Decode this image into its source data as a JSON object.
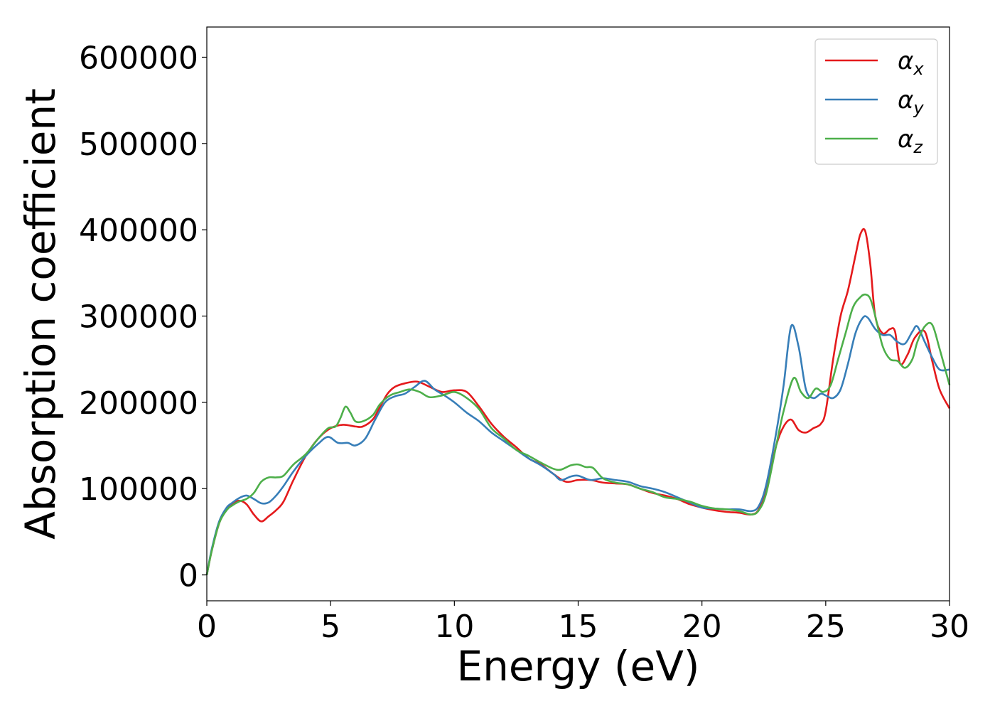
{
  "chart_data": {
    "type": "line",
    "title": "",
    "xlabel": "Energy (eV)",
    "ylabel": "Absorption coefficient",
    "xlim": [
      0,
      30
    ],
    "ylim": [
      -30000,
      635000
    ],
    "xticks": [
      0,
      5,
      10,
      15,
      20,
      25,
      30
    ],
    "xtick_labels": [
      "0",
      "5",
      "10",
      "15",
      "20",
      "25",
      "30"
    ],
    "yticks": [
      0,
      100000,
      200000,
      300000,
      400000,
      500000,
      600000
    ],
    "ytick_labels": [
      "0",
      "100000",
      "200000",
      "300000",
      "400000",
      "500000",
      "600000"
    ],
    "grid": false,
    "legend_position": "top-right",
    "series": [
      {
        "name": "α",
        "subscript": "x",
        "color": "#e41a1c",
        "x": [
          0,
          0.2,
          0.5,
          0.8,
          1.0,
          1.3,
          1.6,
          1.9,
          2.2,
          2.5,
          2.8,
          3.1,
          3.5,
          4.0,
          4.5,
          5.0,
          5.5,
          6.0,
          6.3,
          6.7,
          7.0,
          7.3,
          7.6,
          8.0,
          8.5,
          9.0,
          9.5,
          10.0,
          10.5,
          11.0,
          11.5,
          12.0,
          12.5,
          13.0,
          13.5,
          14.0,
          14.5,
          15.0,
          15.5,
          16.0,
          16.5,
          17.0,
          17.5,
          18.0,
          18.5,
          19.0,
          19.5,
          20.0,
          20.5,
          21.0,
          21.5,
          22.0,
          22.3,
          22.6,
          23.0,
          23.3,
          23.6,
          23.9,
          24.2,
          24.5,
          24.8,
          25.0,
          25.3,
          25.6,
          25.9,
          26.2,
          26.4,
          26.6,
          26.8,
          27.0,
          27.3,
          27.6,
          27.8,
          28.0,
          28.3,
          28.6,
          29.0,
          29.3,
          29.6,
          30.0
        ],
        "values": [
          0,
          28000,
          60000,
          77000,
          82000,
          86000,
          82000,
          70000,
          62000,
          68000,
          75000,
          85000,
          110000,
          138000,
          158000,
          170000,
          174000,
          172000,
          172000,
          180000,
          195000,
          210000,
          218000,
          222000,
          224000,
          218000,
          212000,
          214000,
          212000,
          195000,
          175000,
          160000,
          148000,
          135000,
          128000,
          117000,
          108000,
          110000,
          110000,
          107000,
          106000,
          105000,
          100000,
          95000,
          92000,
          88000,
          82000,
          78000,
          75000,
          73000,
          72000,
          70000,
          76000,
          100000,
          150000,
          172000,
          180000,
          168000,
          165000,
          170000,
          175000,
          190000,
          250000,
          300000,
          330000,
          370000,
          395000,
          398000,
          360000,
          300000,
          280000,
          285000,
          282000,
          245000,
          255000,
          275000,
          282000,
          248000,
          215000,
          193000
        ]
      },
      {
        "name": "α",
        "subscript": "y",
        "color": "#377eb8",
        "x": [
          0,
          0.2,
          0.5,
          0.8,
          1.0,
          1.3,
          1.6,
          1.9,
          2.2,
          2.5,
          2.8,
          3.1,
          3.5,
          4.0,
          4.5,
          4.9,
          5.3,
          5.7,
          6.0,
          6.4,
          6.8,
          7.2,
          7.6,
          8.0,
          8.4,
          8.8,
          9.2,
          9.6,
          10.0,
          10.5,
          11.0,
          11.5,
          12.0,
          12.5,
          13.0,
          13.5,
          14.0,
          14.3,
          14.7,
          15.0,
          15.5,
          16.0,
          16.5,
          17.0,
          17.5,
          18.0,
          18.5,
          19.0,
          19.5,
          20.0,
          20.5,
          21.0,
          21.5,
          22.0,
          22.3,
          22.6,
          23.0,
          23.3,
          23.6,
          23.9,
          24.2,
          24.5,
          24.8,
          25.0,
          25.3,
          25.6,
          25.9,
          26.2,
          26.5,
          26.7,
          27.0,
          27.3,
          27.6,
          27.9,
          28.2,
          28.5,
          28.7,
          29.0,
          29.3,
          29.6,
          30.0
        ],
        "values": [
          0,
          30000,
          62000,
          78000,
          83000,
          89000,
          92000,
          88000,
          83000,
          84000,
          92000,
          103000,
          120000,
          138000,
          152000,
          160000,
          153000,
          153000,
          150000,
          158000,
          180000,
          200000,
          207000,
          210000,
          218000,
          225000,
          215000,
          208000,
          200000,
          188000,
          178000,
          165000,
          155000,
          145000,
          135000,
          127000,
          117000,
          110000,
          114000,
          115000,
          110000,
          112000,
          110000,
          108000,
          103000,
          100000,
          96000,
          90000,
          84000,
          78000,
          77000,
          76000,
          76000,
          74000,
          80000,
          105000,
          165000,
          220000,
          288000,
          265000,
          215000,
          205000,
          210000,
          208000,
          205000,
          215000,
          245000,
          280000,
          298000,
          298000,
          285000,
          278000,
          278000,
          270000,
          268000,
          282000,
          288000,
          270000,
          252000,
          238000,
          238000
        ]
      },
      {
        "name": "α",
        "subscript": "z",
        "color": "#4daf4a",
        "x": [
          0,
          0.2,
          0.5,
          0.8,
          1.0,
          1.3,
          1.6,
          1.9,
          2.2,
          2.5,
          2.8,
          3.1,
          3.5,
          4.0,
          4.5,
          4.9,
          5.2,
          5.4,
          5.6,
          5.8,
          6.0,
          6.3,
          6.7,
          7.0,
          7.4,
          7.8,
          8.2,
          8.6,
          9.0,
          9.5,
          10.0,
          10.5,
          11.0,
          11.5,
          12.0,
          12.5,
          13.0,
          13.5,
          14.0,
          14.3,
          14.7,
          15.0,
          15.3,
          15.6,
          16.0,
          16.5,
          17.0,
          17.5,
          18.0,
          18.5,
          19.0,
          19.5,
          20.0,
          20.5,
          21.0,
          21.5,
          22.0,
          22.3,
          22.6,
          23.0,
          23.3,
          23.7,
          24.0,
          24.3,
          24.6,
          24.9,
          25.2,
          25.5,
          25.8,
          26.1,
          26.4,
          26.6,
          26.8,
          27.0,
          27.3,
          27.6,
          27.9,
          28.2,
          28.5,
          28.7,
          29.0,
          29.3,
          29.6,
          30.0
        ],
        "values": [
          0,
          28000,
          60000,
          75000,
          80000,
          85000,
          88000,
          95000,
          108000,
          113000,
          113000,
          115000,
          128000,
          140000,
          158000,
          170000,
          172000,
          182000,
          195000,
          188000,
          178000,
          178000,
          185000,
          198000,
          208000,
          212000,
          215000,
          212000,
          206000,
          208000,
          212000,
          205000,
          192000,
          170000,
          158000,
          145000,
          138000,
          130000,
          123000,
          122000,
          127000,
          128000,
          125000,
          124000,
          112000,
          107000,
          105000,
          100000,
          96000,
          90000,
          88000,
          85000,
          80000,
          77000,
          76000,
          74000,
          70000,
          75000,
          95000,
          150000,
          190000,
          228000,
          212000,
          205000,
          216000,
          212000,
          220000,
          250000,
          280000,
          310000,
          322000,
          325000,
          320000,
          300000,
          265000,
          250000,
          248000,
          240000,
          250000,
          270000,
          288000,
          290000,
          262000,
          220000
        ]
      }
    ]
  }
}
